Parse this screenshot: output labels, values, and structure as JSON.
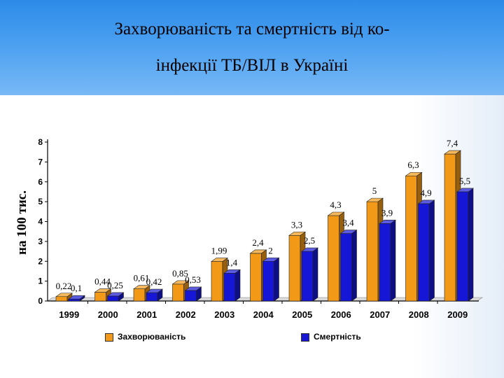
{
  "slide": {
    "title_line1": "Захворюваність та смертність від  ко-",
    "title_line2": "інфекції ТБ/ВІЛ в Україні"
  },
  "chart_data": {
    "type": "bar",
    "title": "",
    "xlabel": "",
    "ylabel": "на 100 тис.",
    "categories": [
      "1999",
      "2000",
      "2001",
      "2002",
      "2003",
      "2004",
      "2005",
      "2006",
      "2007",
      "2008",
      "2009"
    ],
    "series": [
      {
        "name": "Захворюваність",
        "color": "#f29a17",
        "values": [
          0.22,
          0.44,
          0.61,
          0.85,
          1.99,
          2.4,
          3.3,
          4.3,
          5,
          6.3,
          7.4
        ],
        "labels": [
          "0,22",
          "0,44",
          "0,61",
          "0,85",
          "1,99",
          "2,4",
          "3,3",
          "4,3",
          "5",
          "6,3",
          "7,4"
        ]
      },
      {
        "name": "Смертність",
        "color": "#1616d6",
        "values": [
          0.1,
          0.25,
          0.42,
          0.53,
          1.4,
          2,
          2.5,
          3.4,
          3.9,
          4.9,
          5.5
        ],
        "labels": [
          "0,1",
          "0,25",
          "0,42",
          "0,53",
          "1,4",
          "2",
          "2,5",
          "3,4",
          "3,9",
          "4,9",
          "5,5"
        ]
      }
    ],
    "ylim": [
      0,
      8
    ],
    "yticks": [
      "0",
      "1",
      "2",
      "3",
      "4",
      "5",
      "6",
      "7",
      "8"
    ],
    "grid": false,
    "legend_position": "bottom"
  }
}
